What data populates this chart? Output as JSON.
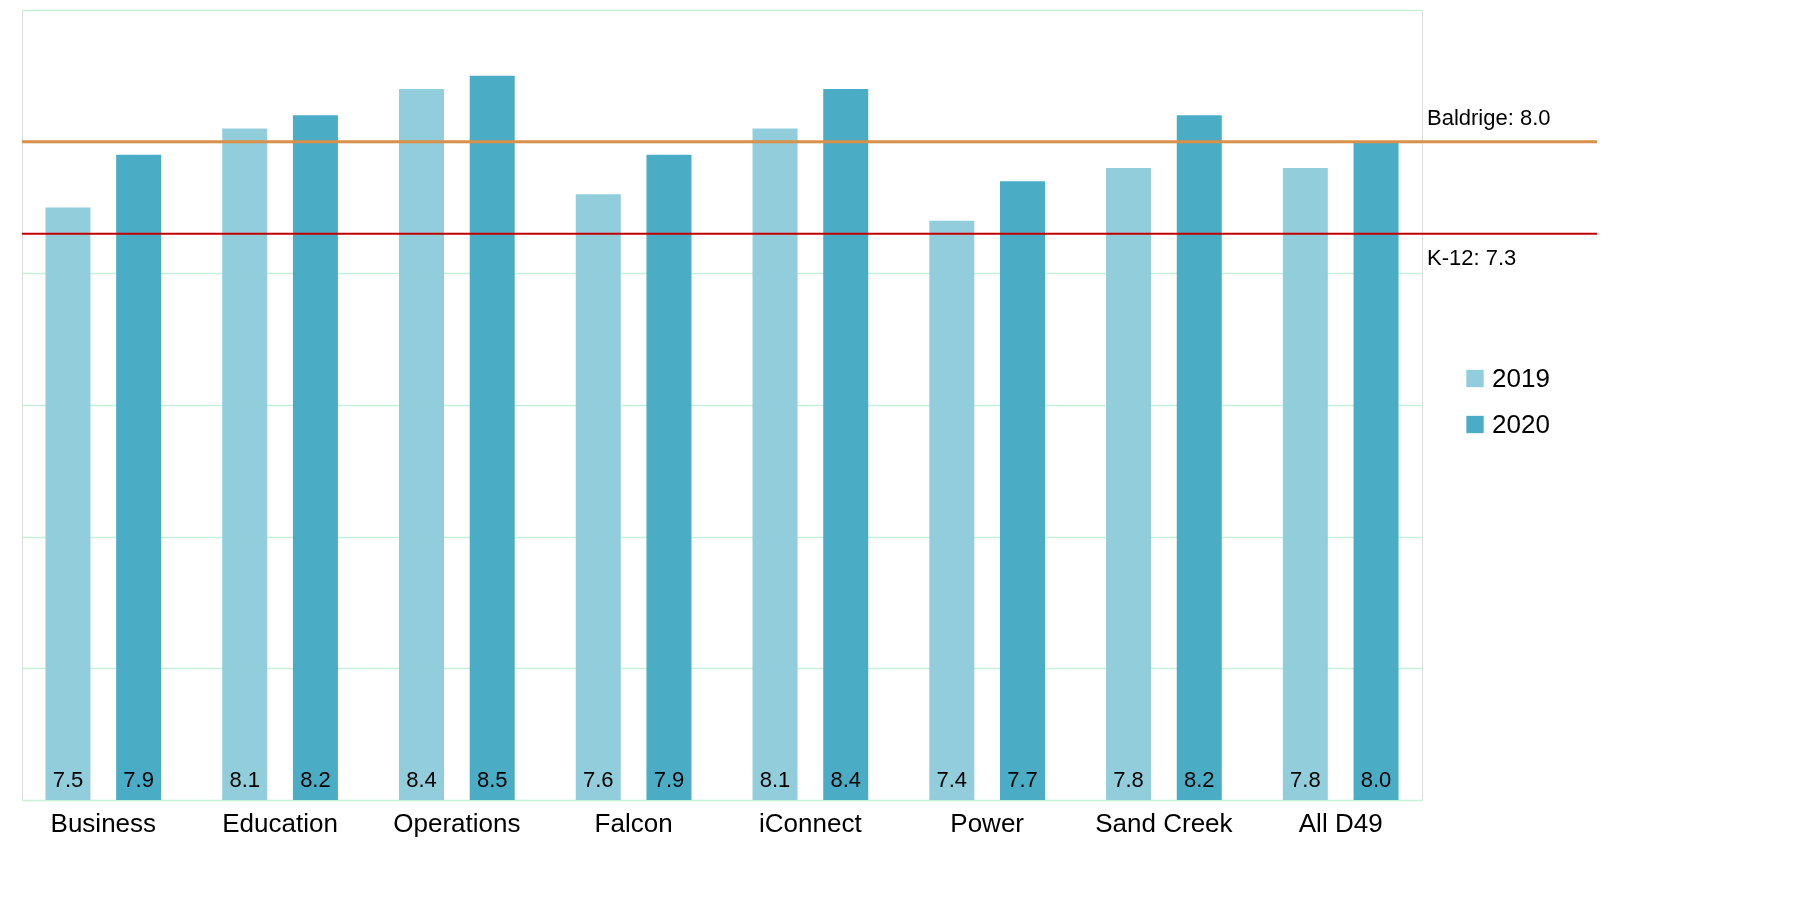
{
  "chart_data": {
    "type": "bar",
    "categories": [
      "Business",
      "Education",
      "Operations",
      "Falcon",
      "iConnect",
      "Power",
      "Sand Creek",
      "All D49"
    ],
    "series": [
      {
        "name": "2019",
        "color": "#92cddc",
        "values": [
          7.5,
          8.1,
          8.4,
          7.6,
          8.1,
          7.4,
          7.8,
          7.8
        ]
      },
      {
        "name": "2020",
        "color": "#4bacc6",
        "values": [
          7.9,
          8.2,
          8.5,
          7.9,
          8.4,
          7.7,
          8.2,
          8.0
        ],
        "value_labels": [
          "7.9",
          "8.2",
          "8.5",
          "7.9",
          "8.4",
          "7.7",
          "8.2",
          "8.0"
        ]
      }
    ],
    "ylim": [
      3,
      9
    ],
    "yticks": [
      {
        "value": 3,
        "label": null
      },
      {
        "value": 4,
        "label": null
      },
      {
        "value": 5,
        "label": null
      },
      {
        "value": 6,
        "label": null
      },
      {
        "value": 7,
        "label": null
      },
      {
        "value": 8,
        "label": null
      },
      {
        "value": 9,
        "label": null
      }
    ],
    "tick_labels": "x",
    "grid": "y",
    "legend": "right",
    "data_labels": true,
    "ref_lines": [
      {
        "axis": "y",
        "value": 8.0,
        "label": "Baldrige:  8.0",
        "color": "#d9914a"
      },
      {
        "axis": "y",
        "value": 7.3,
        "label": "K-12: 7.3",
        "color": "#c00000"
      }
    ]
  }
}
